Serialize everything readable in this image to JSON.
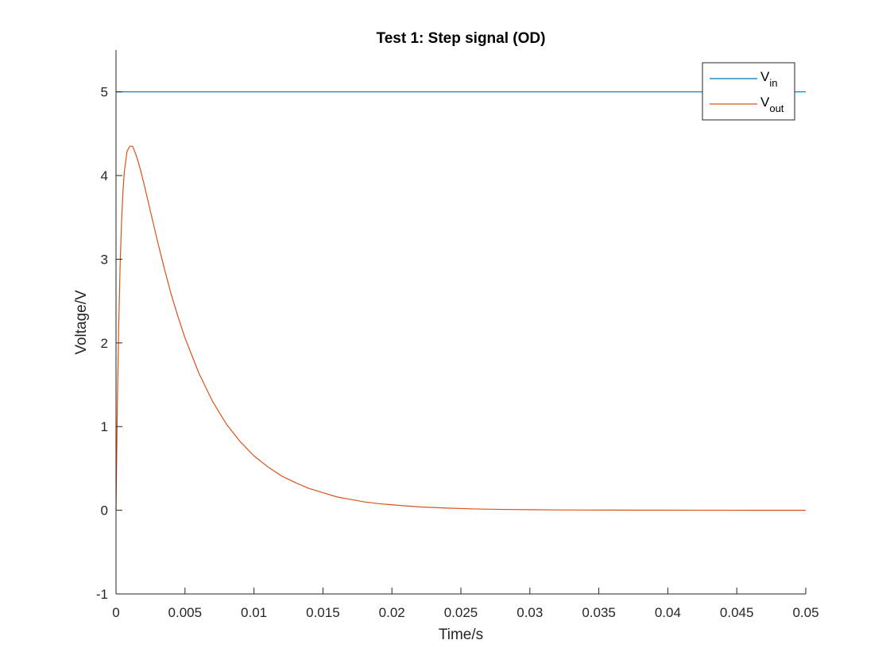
{
  "chart_data": {
    "type": "line",
    "title": "Test 1: Step signal (OD)",
    "xlabel": "Time/s",
    "ylabel": "Voltage/V",
    "xlim": [
      0,
      0.05
    ],
    "ylim": [
      -1,
      5.5
    ],
    "xticks": [
      0,
      0.005,
      0.01,
      0.015,
      0.02,
      0.025,
      0.03,
      0.035,
      0.04,
      0.045,
      0.05
    ],
    "xtick_labels": [
      "0",
      "0.005",
      "0.01",
      "0.015",
      "0.02",
      "0.025",
      "0.03",
      "0.035",
      "0.04",
      "0.045",
      "0.05"
    ],
    "yticks": [
      -1,
      0,
      1,
      2,
      3,
      4,
      5
    ],
    "ytick_labels": [
      "-1",
      "0",
      "1",
      "2",
      "3",
      "4",
      "5"
    ],
    "grid": false,
    "legend_position": "top-right",
    "series": [
      {
        "name": "V_in",
        "legend_main": "V",
        "legend_sub": "in",
        "color": "#0072BD",
        "x": [
          0,
          0.05
        ],
        "y": [
          5,
          5
        ]
      },
      {
        "name": "V_out",
        "legend_main": "V",
        "legend_sub": "out",
        "color": "#D95319",
        "x": [
          0,
          0.0001,
          0.0002,
          0.0003,
          0.0004,
          0.0005,
          0.0006,
          0.0008,
          0.001,
          0.0012,
          0.0014,
          0.0016,
          0.0018,
          0.002,
          0.0025,
          0.003,
          0.0035,
          0.004,
          0.0045,
          0.005,
          0.006,
          0.007,
          0.008,
          0.009,
          0.01,
          0.011,
          0.012,
          0.013,
          0.014,
          0.015,
          0.016,
          0.017,
          0.018,
          0.019,
          0.02,
          0.022,
          0.024,
          0.026,
          0.028,
          0.03,
          0.032,
          0.034,
          0.036,
          0.038,
          0.04,
          0.042,
          0.044,
          0.046,
          0.048,
          0.05
        ],
        "y": [
          0,
          1.28,
          2.23,
          2.94,
          3.44,
          3.8,
          4.04,
          4.29,
          4.35,
          4.35,
          4.27,
          4.17,
          4.05,
          3.92,
          3.57,
          3.22,
          2.89,
          2.58,
          2.31,
          2.06,
          1.64,
          1.3,
          1.03,
          0.82,
          0.65,
          0.52,
          0.41,
          0.33,
          0.26,
          0.21,
          0.16,
          0.13,
          0.1,
          0.08,
          0.065,
          0.04,
          0.026,
          0.016,
          0.01,
          0.007,
          0.004,
          0.003,
          0.002,
          0.001,
          0.001,
          0.0005,
          0.0003,
          0.0002,
          0.0001,
          0
        ]
      }
    ]
  }
}
